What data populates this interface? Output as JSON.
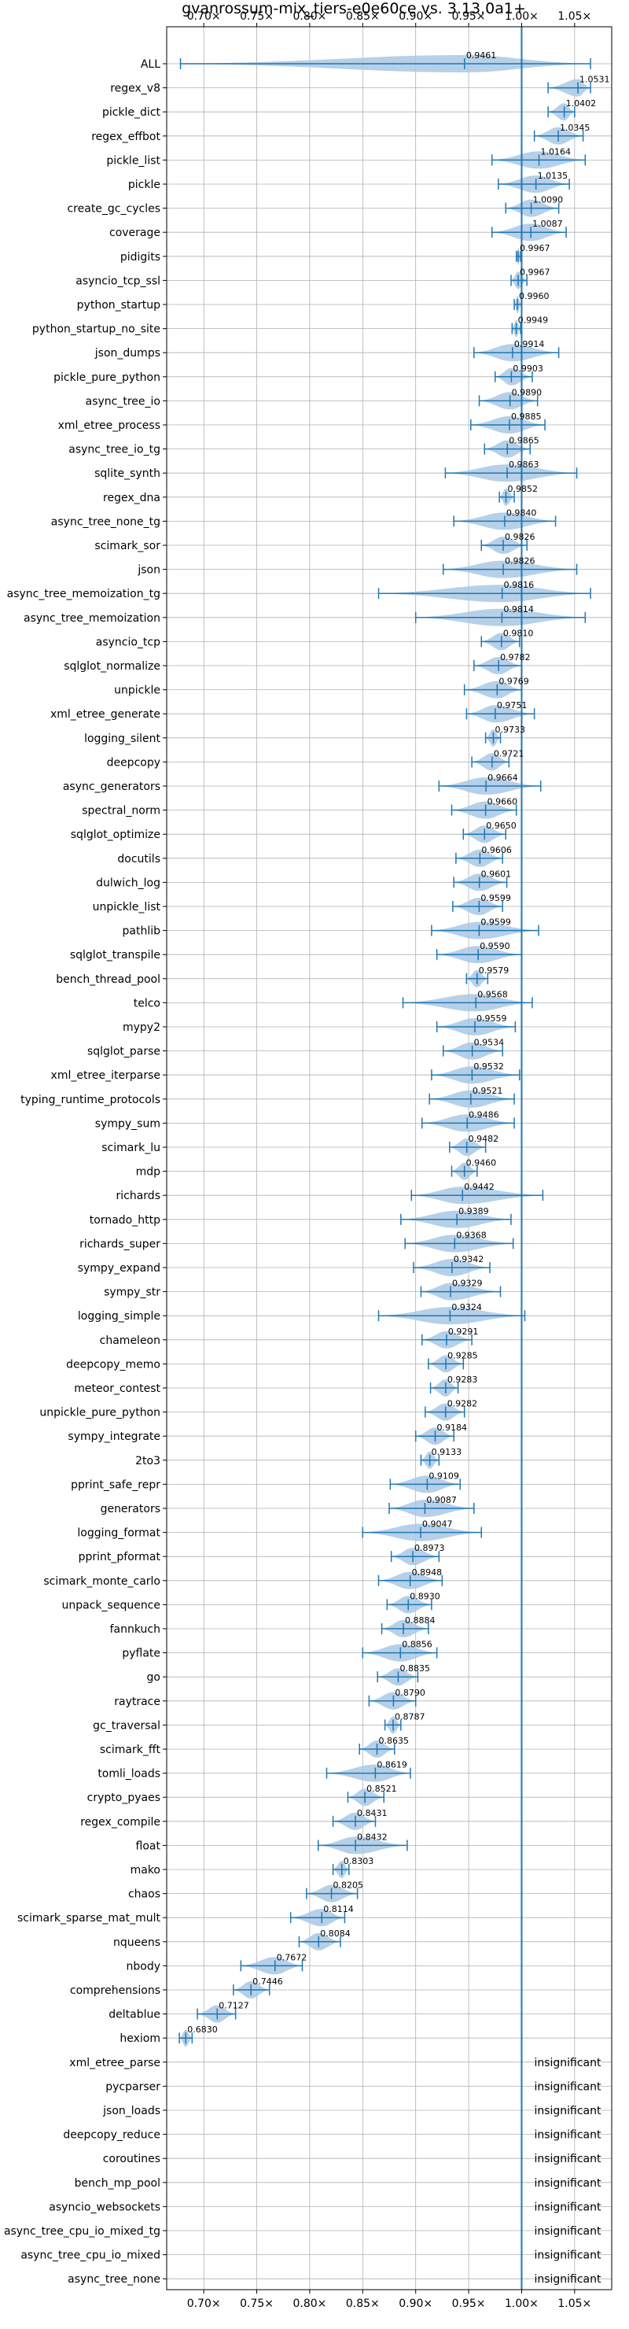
{
  "chart_data": {
    "type": "violin",
    "title": "gvanrossum-mix_tiers-e0e60ce vs. 3.13.0a1+",
    "xlabel": "",
    "ylabel": "",
    "xlim": [
      0.665,
      1.085
    ],
    "reference_line": 1.0,
    "grid": true,
    "tick_values": [
      0.7,
      0.75,
      0.8,
      0.85,
      0.9,
      0.95,
      1.0,
      1.05
    ],
    "tick_labels": [
      "0.70×",
      "0.75×",
      "0.80×",
      "0.85×",
      "0.90×",
      "0.95×",
      "1.00×",
      "1.05×"
    ],
    "insignificant_label": "insignificant",
    "rows": [
      {
        "name": "ALL",
        "median": 0.9461,
        "label": "0.9461",
        "min": 0.678,
        "max": 1.065
      },
      {
        "name": "regex_v8",
        "median": 1.0531,
        "label": "1.0531",
        "min": 1.025,
        "max": 1.065
      },
      {
        "name": "pickle_dict",
        "median": 1.0402,
        "label": "1.0402",
        "min": 1.025,
        "max": 1.05
      },
      {
        "name": "regex_effbot",
        "median": 1.0345,
        "label": "1.0345",
        "min": 1.012,
        "max": 1.058
      },
      {
        "name": "pickle_list",
        "median": 1.0164,
        "label": "1.0164",
        "min": 0.972,
        "max": 1.06
      },
      {
        "name": "pickle",
        "median": 1.0135,
        "label": "1.0135",
        "min": 0.978,
        "max": 1.045
      },
      {
        "name": "create_gc_cycles",
        "median": 1.009,
        "label": "1.0090",
        "min": 0.985,
        "max": 1.035
      },
      {
        "name": "coverage",
        "median": 1.0087,
        "label": "1.0087",
        "min": 0.972,
        "max": 1.042
      },
      {
        "name": "pidigits",
        "median": 0.9967,
        "label": "0.9967",
        "min": 0.995,
        "max": 0.999
      },
      {
        "name": "asyncio_tcp_ssl",
        "median": 0.9967,
        "label": "0.9967",
        "min": 0.99,
        "max": 1.005
      },
      {
        "name": "python_startup",
        "median": 0.996,
        "label": "0.9960",
        "min": 0.993,
        "max": 1.0
      },
      {
        "name": "python_startup_no_site",
        "median": 0.9949,
        "label": "0.9949",
        "min": 0.991,
        "max": 0.999
      },
      {
        "name": "json_dumps",
        "median": 0.9914,
        "label": "0.9914",
        "min": 0.955,
        "max": 1.035
      },
      {
        "name": "pickle_pure_python",
        "median": 0.9903,
        "label": "0.9903",
        "min": 0.975,
        "max": 1.01
      },
      {
        "name": "async_tree_io",
        "median": 0.989,
        "label": "0.9890",
        "min": 0.96,
        "max": 1.015
      },
      {
        "name": "xml_etree_process",
        "median": 0.9885,
        "label": "0.9885",
        "min": 0.952,
        "max": 1.022
      },
      {
        "name": "async_tree_io_tg",
        "median": 0.9865,
        "label": "0.9865",
        "min": 0.965,
        "max": 1.008
      },
      {
        "name": "sqlite_synth",
        "median": 0.9863,
        "label": "0.9863",
        "min": 0.928,
        "max": 1.052
      },
      {
        "name": "regex_dna",
        "median": 0.9852,
        "label": "0.9852",
        "min": 0.979,
        "max": 0.993
      },
      {
        "name": "async_tree_none_tg",
        "median": 0.984,
        "label": "0.9840",
        "min": 0.936,
        "max": 1.032
      },
      {
        "name": "scimark_sor",
        "median": 0.9826,
        "label": "0.9826",
        "min": 0.962,
        "max": 1.005
      },
      {
        "name": "json",
        "median": 0.9826,
        "label": "0.9826",
        "min": 0.926,
        "max": 1.052
      },
      {
        "name": "async_tree_memoization_tg",
        "median": 0.9816,
        "label": "0.9816",
        "min": 0.865,
        "max": 1.065
      },
      {
        "name": "async_tree_memoization",
        "median": 0.9814,
        "label": "0.9814",
        "min": 0.9,
        "max": 1.06
      },
      {
        "name": "asyncio_tcp",
        "median": 0.981,
        "label": "0.9810",
        "min": 0.962,
        "max": 0.998
      },
      {
        "name": "sqlglot_normalize",
        "median": 0.9782,
        "label": "0.9782",
        "min": 0.955,
        "max": 1.0
      },
      {
        "name": "unpickle",
        "median": 0.9769,
        "label": "0.9769",
        "min": 0.946,
        "max": 1.0
      },
      {
        "name": "xml_etree_generate",
        "median": 0.9751,
        "label": "0.9751",
        "min": 0.948,
        "max": 1.012
      },
      {
        "name": "logging_silent",
        "median": 0.9733,
        "label": "0.9733",
        "min": 0.966,
        "max": 0.98
      },
      {
        "name": "deepcopy",
        "median": 0.9721,
        "label": "0.9721",
        "min": 0.953,
        "max": 0.988
      },
      {
        "name": "async_generators",
        "median": 0.9664,
        "label": "0.9664",
        "min": 0.922,
        "max": 1.018
      },
      {
        "name": "spectral_norm",
        "median": 0.966,
        "label": "0.9660",
        "min": 0.934,
        "max": 0.995
      },
      {
        "name": "sqlglot_optimize",
        "median": 0.965,
        "label": "0.9650",
        "min": 0.945,
        "max": 0.985
      },
      {
        "name": "docutils",
        "median": 0.9606,
        "label": "0.9606",
        "min": 0.938,
        "max": 0.982
      },
      {
        "name": "dulwich_log",
        "median": 0.9601,
        "label": "0.9601",
        "min": 0.936,
        "max": 0.986
      },
      {
        "name": "unpickle_list",
        "median": 0.9599,
        "label": "0.9599",
        "min": 0.935,
        "max": 0.982
      },
      {
        "name": "pathlib",
        "median": 0.9599,
        "label": "0.9599",
        "min": 0.915,
        "max": 1.016
      },
      {
        "name": "sqlglot_transpile",
        "median": 0.959,
        "label": "0.9590",
        "min": 0.92,
        "max": 1.0
      },
      {
        "name": "bench_thread_pool",
        "median": 0.9579,
        "label": "0.9579",
        "min": 0.948,
        "max": 0.968
      },
      {
        "name": "telco",
        "median": 0.9568,
        "label": "0.9568",
        "min": 0.888,
        "max": 1.01
      },
      {
        "name": "mypy2",
        "median": 0.9559,
        "label": "0.9559",
        "min": 0.92,
        "max": 0.994
      },
      {
        "name": "sqlglot_parse",
        "median": 0.9534,
        "label": "0.9534",
        "min": 0.926,
        "max": 0.982
      },
      {
        "name": "xml_etree_iterparse",
        "median": 0.9532,
        "label": "0.9532",
        "min": 0.915,
        "max": 0.998
      },
      {
        "name": "typing_runtime_protocols",
        "median": 0.9521,
        "label": "0.9521",
        "min": 0.913,
        "max": 0.993
      },
      {
        "name": "sympy_sum",
        "median": 0.9486,
        "label": "0.9486",
        "min": 0.906,
        "max": 0.993
      },
      {
        "name": "scimark_lu",
        "median": 0.9482,
        "label": "0.9482",
        "min": 0.932,
        "max": 0.966
      },
      {
        "name": "mdp",
        "median": 0.946,
        "label": "0.9460",
        "min": 0.934,
        "max": 0.958
      },
      {
        "name": "richards",
        "median": 0.9442,
        "label": "0.9442",
        "min": 0.896,
        "max": 1.02
      },
      {
        "name": "tornado_http",
        "median": 0.9389,
        "label": "0.9389",
        "min": 0.886,
        "max": 0.99
      },
      {
        "name": "richards_super",
        "median": 0.9368,
        "label": "0.9368",
        "min": 0.89,
        "max": 0.992
      },
      {
        "name": "sympy_expand",
        "median": 0.9342,
        "label": "0.9342",
        "min": 0.898,
        "max": 0.97
      },
      {
        "name": "sympy_str",
        "median": 0.9329,
        "label": "0.9329",
        "min": 0.905,
        "max": 0.98
      },
      {
        "name": "logging_simple",
        "median": 0.9324,
        "label": "0.9324",
        "min": 0.865,
        "max": 1.003
      },
      {
        "name": "chameleon",
        "median": 0.9291,
        "label": "0.9291",
        "min": 0.906,
        "max": 0.953
      },
      {
        "name": "deepcopy_memo",
        "median": 0.9285,
        "label": "0.9285",
        "min": 0.912,
        "max": 0.945
      },
      {
        "name": "meteor_contest",
        "median": 0.9283,
        "label": "0.9283",
        "min": 0.914,
        "max": 0.94
      },
      {
        "name": "unpickle_pure_python",
        "median": 0.9282,
        "label": "0.9282",
        "min": 0.909,
        "max": 0.946
      },
      {
        "name": "sympy_integrate",
        "median": 0.9184,
        "label": "0.9184",
        "min": 0.9,
        "max": 0.936
      },
      {
        "name": "2to3",
        "median": 0.9133,
        "label": "0.9133",
        "min": 0.905,
        "max": 0.922
      },
      {
        "name": "pprint_safe_repr",
        "median": 0.9109,
        "label": "0.9109",
        "min": 0.876,
        "max": 0.942
      },
      {
        "name": "generators",
        "median": 0.9087,
        "label": "0.9087",
        "min": 0.875,
        "max": 0.955
      },
      {
        "name": "logging_format",
        "median": 0.9047,
        "label": "0.9047",
        "min": 0.85,
        "max": 0.962
      },
      {
        "name": "pprint_pformat",
        "median": 0.8973,
        "label": "0.8973",
        "min": 0.877,
        "max": 0.922
      },
      {
        "name": "scimark_monte_carlo",
        "median": 0.8948,
        "label": "0.8948",
        "min": 0.865,
        "max": 0.925
      },
      {
        "name": "unpack_sequence",
        "median": 0.893,
        "label": "0.8930",
        "min": 0.873,
        "max": 0.915
      },
      {
        "name": "fannkuch",
        "median": 0.8884,
        "label": "0.8884",
        "min": 0.868,
        "max": 0.912
      },
      {
        "name": "pyflate",
        "median": 0.8856,
        "label": "0.8856",
        "min": 0.85,
        "max": 0.92
      },
      {
        "name": "go",
        "median": 0.8835,
        "label": "0.8835",
        "min": 0.864,
        "max": 0.902
      },
      {
        "name": "raytrace",
        "median": 0.879,
        "label": "0.8790",
        "min": 0.856,
        "max": 0.9
      },
      {
        "name": "gc_traversal",
        "median": 0.8787,
        "label": "0.8787",
        "min": 0.871,
        "max": 0.886
      },
      {
        "name": "scimark_fft",
        "median": 0.8635,
        "label": "0.8635",
        "min": 0.847,
        "max": 0.88
      },
      {
        "name": "tomli_loads",
        "median": 0.8619,
        "label": "0.8619",
        "min": 0.816,
        "max": 0.895
      },
      {
        "name": "crypto_pyaes",
        "median": 0.8521,
        "label": "0.8521",
        "min": 0.836,
        "max": 0.87
      },
      {
        "name": "regex_compile",
        "median": 0.8431,
        "label": "0.8431",
        "min": 0.822,
        "max": 0.862
      },
      {
        "name": "float",
        "median": 0.8432,
        "label": "0.8432",
        "min": 0.808,
        "max": 0.892
      },
      {
        "name": "mako",
        "median": 0.8303,
        "label": "0.8303",
        "min": 0.822,
        "max": 0.837
      },
      {
        "name": "chaos",
        "median": 0.8205,
        "label": "0.8205",
        "min": 0.797,
        "max": 0.845
      },
      {
        "name": "scimark_sparse_mat_mult",
        "median": 0.8114,
        "label": "0.8114",
        "min": 0.782,
        "max": 0.833
      },
      {
        "name": "nqueens",
        "median": 0.8084,
        "label": "0.8084",
        "min": 0.79,
        "max": 0.829
      },
      {
        "name": "nbody",
        "median": 0.7672,
        "label": "0.7672",
        "min": 0.735,
        "max": 0.793
      },
      {
        "name": "comprehensions",
        "median": 0.7446,
        "label": "0.7446",
        "min": 0.728,
        "max": 0.762
      },
      {
        "name": "deltablue",
        "median": 0.7127,
        "label": "0.7127",
        "min": 0.694,
        "max": 0.73
      },
      {
        "name": "hexiom",
        "median": 0.683,
        "label": "0.6830",
        "min": 0.677,
        "max": 0.689
      },
      {
        "name": "xml_etree_parse",
        "insignificant": true
      },
      {
        "name": "pycparser",
        "insignificant": true
      },
      {
        "name": "json_loads",
        "insignificant": true
      },
      {
        "name": "deepcopy_reduce",
        "insignificant": true
      },
      {
        "name": "coroutines",
        "insignificant": true
      },
      {
        "name": "bench_mp_pool",
        "insignificant": true
      },
      {
        "name": "asyncio_websockets",
        "insignificant": true
      },
      {
        "name": "async_tree_cpu_io_mixed_tg",
        "insignificant": true
      },
      {
        "name": "async_tree_cpu_io_mixed",
        "insignificant": true
      },
      {
        "name": "async_tree_none",
        "insignificant": true
      }
    ]
  },
  "colors": {
    "violin_fill": "#a9c8e4",
    "line": "#1f77b4",
    "grid": "#b0b0b0"
  }
}
